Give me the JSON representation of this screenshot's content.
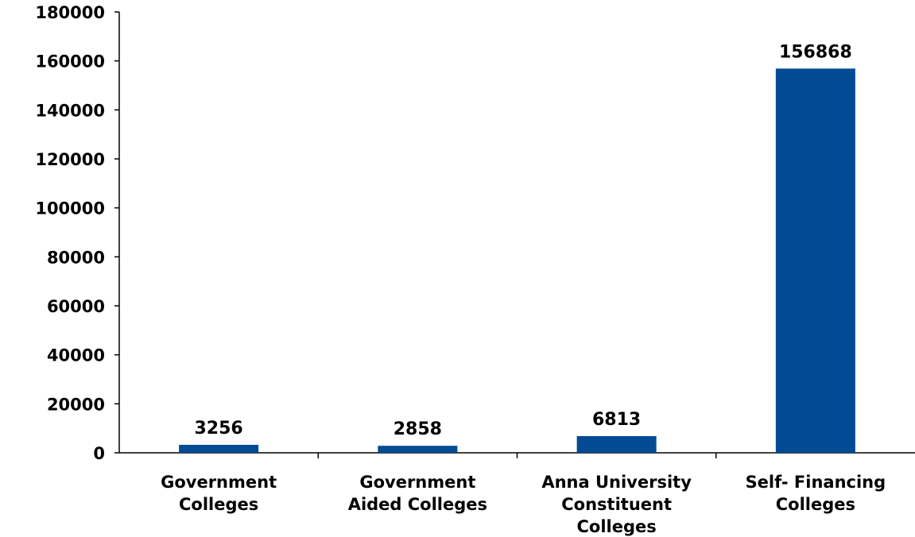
{
  "chart_data": {
    "type": "bar",
    "categories": [
      [
        "Government",
        "Colleges"
      ],
      [
        "Government",
        "Aided Colleges"
      ],
      [
        "Anna University",
        "Constituent",
        "Colleges"
      ],
      [
        "Self- Financing",
        "Colleges"
      ]
    ],
    "values": [
      3256,
      2858,
      6813,
      156868
    ],
    "data_labels": [
      "3256",
      "2858",
      "6813",
      "156868"
    ],
    "y_ticks": [
      "0",
      "20000",
      "40000",
      "60000",
      "80000",
      "100000",
      "120000",
      "140000",
      "160000",
      "180000"
    ],
    "ylim": [
      0,
      180000
    ],
    "bar_color": "#024B94",
    "title": "",
    "xlabel": "",
    "ylabel": "",
    "grid": false,
    "legend": "none"
  }
}
